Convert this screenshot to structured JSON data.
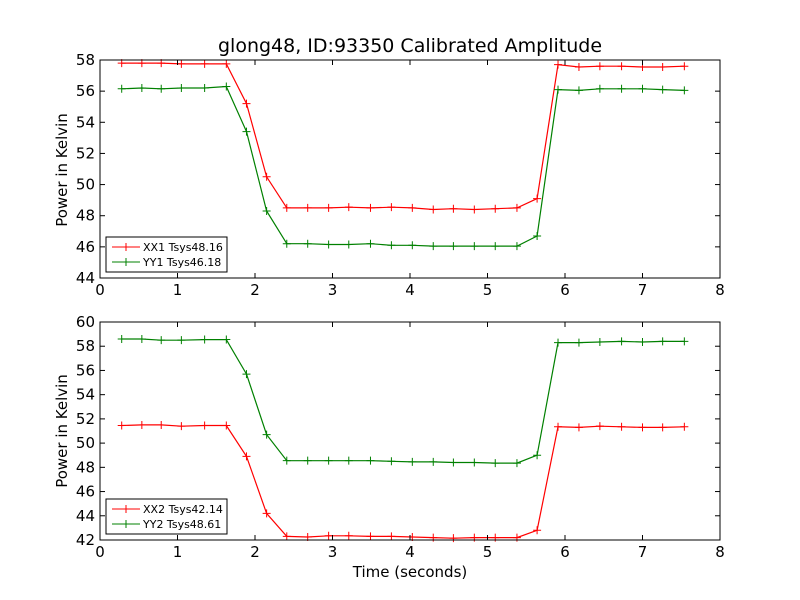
{
  "chart_data": [
    {
      "type": "line",
      "title": "glong48, ID:93350 Calibrated Amplitude",
      "xlabel": "",
      "ylabel": "Power in Kelvin",
      "xlim": [
        0,
        8
      ],
      "ylim": [
        44,
        58
      ],
      "xticks": [
        "0",
        "1",
        "2",
        "3",
        "4",
        "5",
        "6",
        "7",
        "8"
      ],
      "yticks": [
        "44",
        "46",
        "48",
        "50",
        "52",
        "54",
        "56",
        "58"
      ],
      "grid": false,
      "legend_position": "lower-left",
      "x": [
        0.28,
        0.54,
        0.79,
        1.05,
        1.35,
        1.63,
        1.89,
        2.15,
        2.41,
        2.68,
        2.95,
        3.21,
        3.49,
        3.76,
        4.03,
        4.3,
        4.56,
        4.83,
        5.1,
        5.38,
        5.64,
        5.91,
        6.18,
        6.45,
        6.73,
        7.0,
        7.26,
        7.54
      ],
      "series": [
        {
          "name": "XX1 Tsys48.16",
          "color": "#ff0000",
          "values": [
            57.8,
            57.8,
            57.8,
            57.75,
            57.75,
            57.75,
            55.2,
            50.5,
            48.5,
            48.5,
            48.5,
            48.55,
            48.5,
            48.55,
            48.5,
            48.4,
            48.45,
            48.4,
            48.45,
            48.5,
            49.1,
            57.7,
            57.55,
            57.6,
            57.6,
            57.55,
            57.55,
            57.6
          ]
        },
        {
          "name": "YY1 Tsys46.18",
          "color": "#008000",
          "values": [
            56.15,
            56.2,
            56.15,
            56.2,
            56.2,
            56.3,
            53.4,
            48.3,
            46.2,
            46.2,
            46.15,
            46.15,
            46.2,
            46.1,
            46.1,
            46.05,
            46.05,
            46.05,
            46.05,
            46.05,
            46.7,
            56.1,
            56.05,
            56.15,
            56.15,
            56.15,
            56.1,
            56.05
          ]
        }
      ]
    },
    {
      "type": "line",
      "title": "",
      "xlabel": "Time (seconds)",
      "ylabel": "Power in Kelvin",
      "xlim": [
        0,
        8
      ],
      "ylim": [
        42,
        60
      ],
      "xticks": [
        "0",
        "1",
        "2",
        "3",
        "4",
        "5",
        "6",
        "7",
        "8"
      ],
      "yticks": [
        "42",
        "44",
        "46",
        "48",
        "50",
        "52",
        "54",
        "56",
        "58",
        "60"
      ],
      "grid": false,
      "legend_position": "lower-left",
      "x": [
        0.28,
        0.54,
        0.79,
        1.05,
        1.35,
        1.63,
        1.89,
        2.15,
        2.41,
        2.68,
        2.95,
        3.21,
        3.49,
        3.76,
        4.03,
        4.3,
        4.56,
        4.83,
        5.1,
        5.38,
        5.64,
        5.91,
        6.18,
        6.45,
        6.73,
        7.0,
        7.26,
        7.54
      ],
      "series": [
        {
          "name": "XX2 Tsys42.14",
          "color": "#ff0000",
          "values": [
            51.45,
            51.5,
            51.5,
            51.4,
            51.45,
            51.45,
            48.9,
            44.2,
            42.3,
            42.25,
            42.35,
            42.35,
            42.3,
            42.3,
            42.25,
            42.2,
            42.15,
            42.2,
            42.2,
            42.2,
            42.8,
            51.35,
            51.3,
            51.4,
            51.35,
            51.3,
            51.3,
            51.35
          ]
        },
        {
          "name": "YY2 Tsys48.61",
          "color": "#008000",
          "values": [
            58.6,
            58.6,
            58.5,
            58.5,
            58.55,
            58.55,
            55.7,
            50.7,
            48.55,
            48.55,
            48.55,
            48.55,
            48.55,
            48.5,
            48.45,
            48.45,
            48.4,
            48.4,
            48.35,
            48.35,
            49.0,
            58.3,
            58.3,
            58.35,
            58.4,
            58.35,
            58.4,
            58.4
          ]
        }
      ]
    }
  ]
}
